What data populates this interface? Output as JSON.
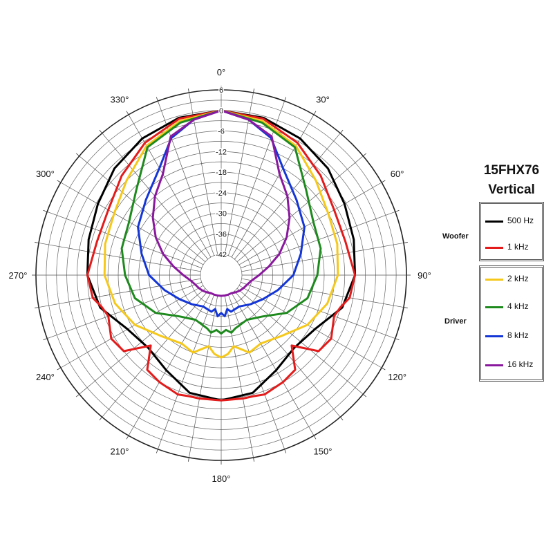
{
  "chart_data": {
    "type": "polar-line",
    "title": "15FHX76",
    "subtitle": "Vertical",
    "radial_axis": {
      "range": [
        -42,
        6
      ],
      "ticks": [
        6,
        0,
        -6,
        -12,
        -18,
        -24,
        -30,
        -36,
        -42
      ],
      "tick_labels": [
        "6",
        "0",
        "-6",
        "-12",
        "-18",
        "-24",
        "-30",
        "-36",
        "-42"
      ]
    },
    "angular_axis": {
      "direction": "clockwise",
      "zero": "top",
      "major_ticks": [
        0,
        30,
        60,
        90,
        120,
        150,
        180,
        210,
        240,
        270,
        300,
        330
      ],
      "tick_labels": [
        "0°",
        "30°",
        "60°",
        "90°",
        "120°",
        "150°",
        "180°",
        "210°",
        "240°",
        "270°",
        "300°",
        "330°"
      ],
      "spokes_every_deg": 10
    },
    "grid": true,
    "legend": {
      "placement": "right",
      "groups": [
        {
          "label": "Woofer",
          "entries": [
            "500 Hz",
            "1 kHz"
          ]
        },
        {
          "label": "Driver",
          "entries": [
            "2 kHz",
            "4 kHz",
            "8 kHz",
            "16 kHz"
          ]
        }
      ]
    },
    "series": [
      {
        "name": "500 Hz",
        "color": "#000000",
        "theta": [
          0,
          15,
          30,
          45,
          60,
          75,
          90,
          105,
          120,
          135,
          150,
          165,
          180
        ],
        "values": [
          0,
          -0.5,
          -2,
          -4,
          -6.5,
          -8,
          -9,
          -11.5,
          -16.5,
          -18,
          -16,
          -12.5,
          -11.5
        ]
      },
      {
        "name": "1 kHz",
        "color": "#e31b1b",
        "theta": [
          0,
          15,
          30,
          45,
          60,
          75,
          90,
          100,
          105,
          110,
          120,
          128,
          135,
          142,
          150,
          160,
          165,
          170,
          180
        ],
        "values": [
          0,
          -0.8,
          -3.5,
          -7,
          -10,
          -10.5,
          -9,
          -10,
          -12,
          -13,
          -11,
          -12,
          -19,
          -13,
          -12,
          -11,
          -11.5,
          -11.5,
          -11.5
        ]
      },
      {
        "name": "2 kHz",
        "color": "#f5c81a",
        "theta": [
          0,
          15,
          30,
          45,
          60,
          75,
          90,
          105,
          120,
          135,
          150,
          160,
          170,
          175,
          180
        ],
        "values": [
          0,
          -1.5,
          -4.5,
          -9,
          -12,
          -13,
          -14,
          -16,
          -19,
          -23,
          -25,
          -24,
          -27,
          -25,
          -24
        ]
      },
      {
        "name": "4 kHz",
        "color": "#1e8a1e",
        "theta": [
          0,
          15,
          30,
          45,
          60,
          75,
          90,
          105,
          120,
          135,
          150,
          165,
          170,
          175,
          180
        ],
        "values": [
          0,
          -2,
          -5,
          -13,
          -17,
          -18,
          -20,
          -22,
          -26,
          -31,
          -33,
          -32,
          -31,
          -32,
          -31
        ]
      },
      {
        "name": "8 kHz",
        "color": "#1436d6",
        "theta": [
          0,
          10,
          20,
          30,
          45,
          60,
          75,
          90,
          105,
          120,
          135,
          150,
          165,
          170,
          175,
          180
        ],
        "values": [
          0,
          -2,
          -5.5,
          -12,
          -17,
          -20,
          -24,
          -27,
          -31,
          -34,
          -36,
          -37.5,
          -37,
          -38,
          -36,
          -37
        ]
      },
      {
        "name": "16 kHz",
        "color": "#8a189e",
        "theta": [
          0,
          10,
          20,
          30,
          40,
          50,
          60,
          70,
          80,
          90,
          100,
          110,
          120,
          130,
          140,
          150,
          160,
          170,
          180
        ],
        "values": [
          0,
          -2,
          -5,
          -14,
          -18,
          -22,
          -26,
          -30,
          -34,
          -37,
          -39,
          -40,
          -40.5,
          -41,
          -41.5,
          -42,
          -42,
          -42,
          -42
        ]
      }
    ]
  }
}
